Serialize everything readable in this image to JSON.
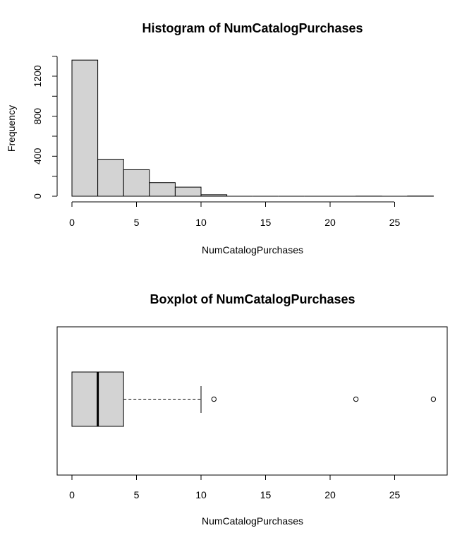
{
  "chart_data": [
    {
      "type": "histogram",
      "title": "Histogram of NumCatalogPurchases",
      "xlabel": "NumCatalogPurchases",
      "ylabel": "Frequency",
      "xlim": [
        0,
        28
      ],
      "ylim": [
        0,
        1400
      ],
      "x_ticks": [
        "0",
        "5",
        "10",
        "15",
        "20",
        "25"
      ],
      "y_ticks": [
        "0",
        "400",
        "800",
        "1200"
      ],
      "bins": [
        {
          "start": 0,
          "end": 2,
          "count": 1361
        },
        {
          "start": 2,
          "end": 4,
          "count": 370
        },
        {
          "start": 4,
          "end": 6,
          "count": 265
        },
        {
          "start": 6,
          "end": 8,
          "count": 136
        },
        {
          "start": 8,
          "end": 10,
          "count": 91
        },
        {
          "start": 10,
          "end": 12,
          "count": 15
        },
        {
          "start": 12,
          "end": 14,
          "count": 0
        },
        {
          "start": 14,
          "end": 16,
          "count": 0
        },
        {
          "start": 16,
          "end": 18,
          "count": 0
        },
        {
          "start": 18,
          "end": 20,
          "count": 0
        },
        {
          "start": 20,
          "end": 22,
          "count": 0
        },
        {
          "start": 22,
          "end": 24,
          "count": 1
        },
        {
          "start": 24,
          "end": 26,
          "count": 0
        },
        {
          "start": 26,
          "end": 28,
          "count": 2
        }
      ],
      "bar_fill": "#d3d3d3",
      "bar_stroke": "#000000"
    },
    {
      "type": "boxplot",
      "title": "Boxplot of NumCatalogPurchases",
      "xlabel": "NumCatalogPurchases",
      "x_ticks": [
        "0",
        "5",
        "10",
        "15",
        "20",
        "25"
      ],
      "xlim": [
        0,
        28
      ],
      "horizontal": true,
      "box": {
        "whisker_low": 0,
        "q1": 0,
        "median": 2,
        "q3": 4,
        "whisker_high": 10
      },
      "outliers": [
        11,
        22,
        28
      ],
      "box_fill": "#d3d3d3",
      "box_stroke": "#000000"
    }
  ]
}
